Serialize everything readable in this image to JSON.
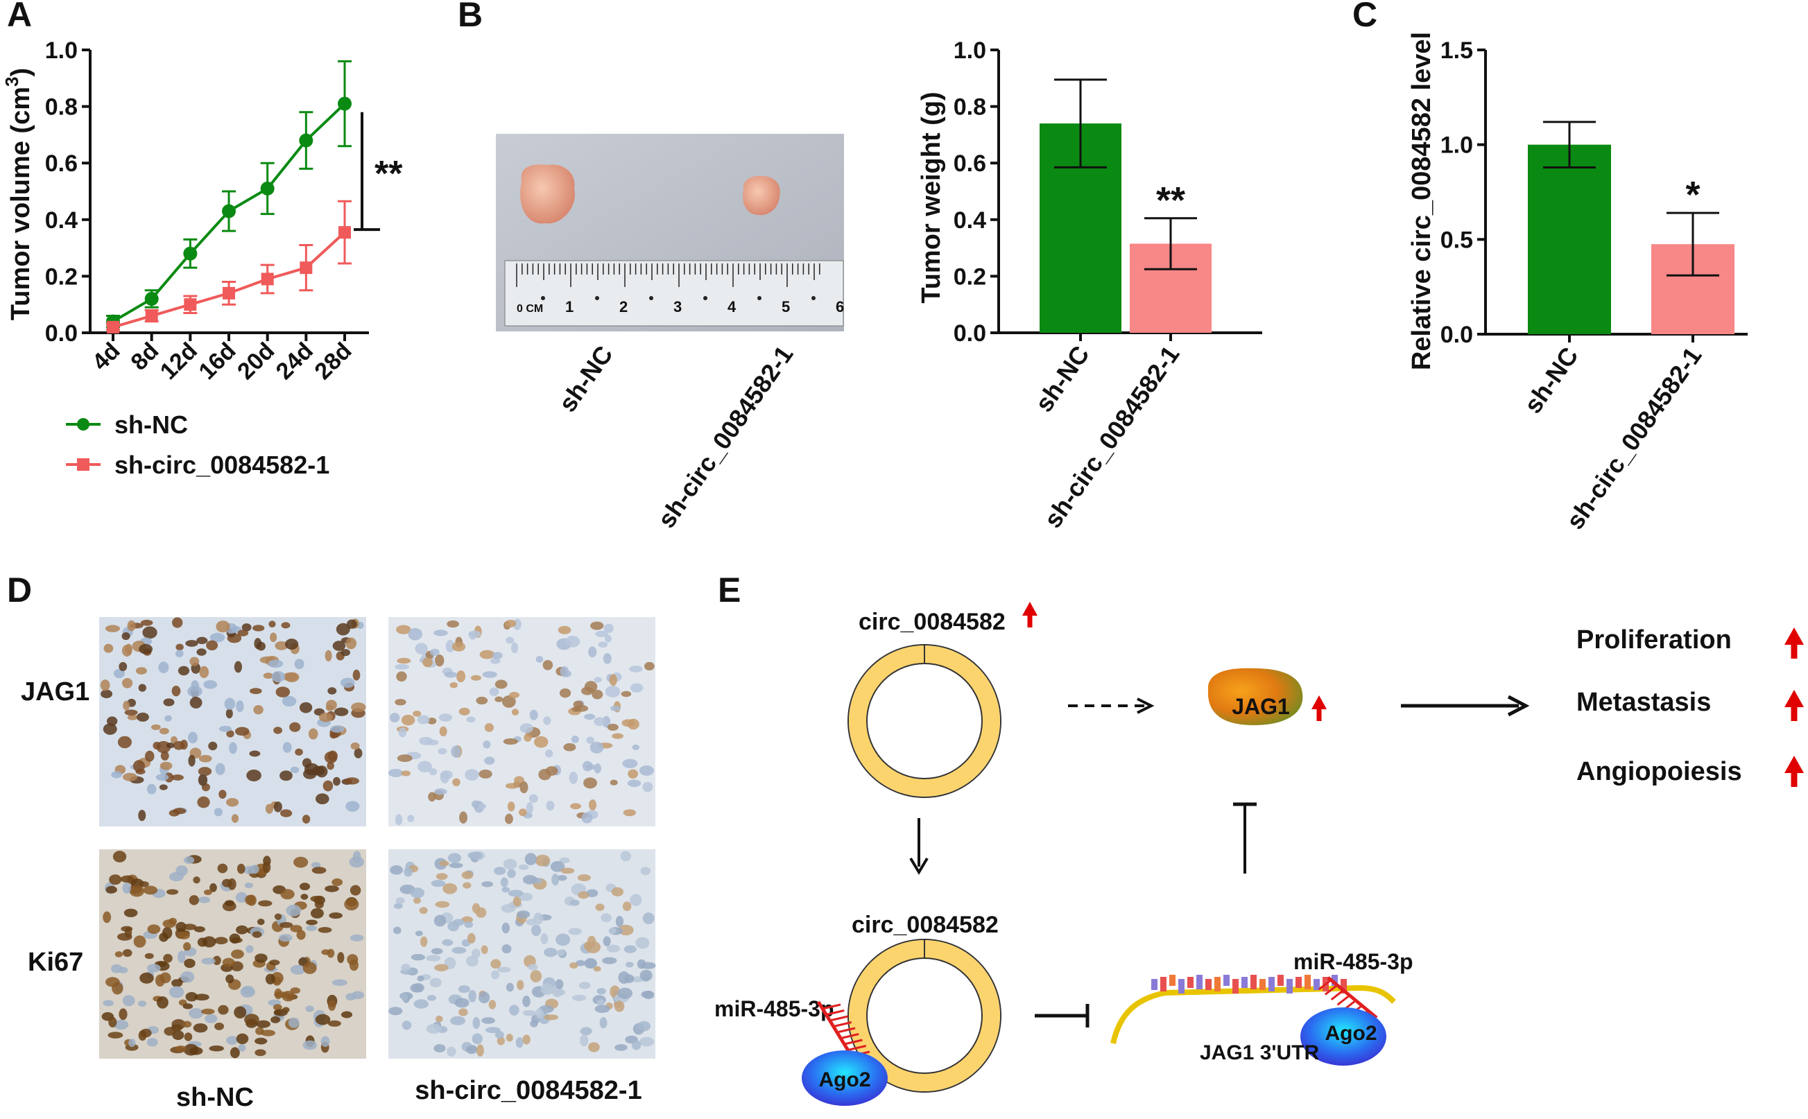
{
  "panels": {
    "A": "A",
    "B": "B",
    "C": "C",
    "D": "D",
    "E": "E"
  },
  "colors": {
    "sh_nc": "#0a8a12",
    "sh_circ": "#f05a5a",
    "bar_nc": "#0a8a12",
    "bar_circ": "#f88787",
    "ring": "#fcd46e",
    "arrow_red": "#e00000",
    "mir": "#e02020"
  },
  "chart_data": [
    {
      "id": "A",
      "type": "line",
      "ylabel": "Tumor volume (cm",
      "ylabel_sup": "3",
      "ylabel_end": ")",
      "ylim": [
        0,
        1.0
      ],
      "yticks": [
        "0.0",
        "0.2",
        "0.4",
        "0.6",
        "0.8",
        "1.0"
      ],
      "ytick_values": [
        0,
        0.2,
        0.4,
        0.6,
        0.8,
        1.0
      ],
      "categories": [
        "4d",
        "8d",
        "12d",
        "16d",
        "20d",
        "24d",
        "28d"
      ],
      "series": [
        {
          "name": "sh-NC",
          "values": [
            0.04,
            0.12,
            0.28,
            0.43,
            0.51,
            0.68,
            0.81
          ],
          "errors": [
            0.02,
            0.03,
            0.05,
            0.07,
            0.09,
            0.1,
            0.15
          ]
        },
        {
          "name": "sh-circ_0084582-1",
          "values": [
            0.02,
            0.06,
            0.1,
            0.14,
            0.19,
            0.23,
            0.355
          ],
          "errors": [
            0.01,
            0.02,
            0.03,
            0.04,
            0.05,
            0.08,
            0.11
          ]
        }
      ],
      "significance": "**"
    },
    {
      "id": "B",
      "type": "bar",
      "ylabel": "Tumor weight (g)",
      "ylim": [
        0,
        1.0
      ],
      "yticks": [
        "0.0",
        "0.2",
        "0.4",
        "0.6",
        "0.8",
        "1.0"
      ],
      "ytick_values": [
        0,
        0.2,
        0.4,
        0.6,
        0.8,
        1.0
      ],
      "categories": [
        "sh-NC",
        "sh-circ_0084582-1"
      ],
      "values": [
        0.74,
        0.315
      ],
      "errors": [
        0.155,
        0.09
      ],
      "significance": [
        "",
        "**"
      ]
    },
    {
      "id": "C",
      "type": "bar",
      "ylabel": "Relative circ_0084582 level",
      "ylim": [
        0,
        1.5
      ],
      "yticks": [
        "0.0",
        "0.5",
        "1.0",
        "1.5"
      ],
      "ytick_values": [
        0,
        0.5,
        1.0,
        1.5
      ],
      "categories": [
        "sh-NC",
        "sh-circ_0084582-1"
      ],
      "values": [
        1.0,
        0.475
      ],
      "errors": [
        0.12,
        0.165
      ],
      "significance": [
        "",
        "*"
      ]
    }
  ],
  "photo": {
    "labels": [
      "sh-NC",
      "sh-circ_0084582-1"
    ],
    "ruler_unit": "0 CM",
    "ruler_numbers": [
      "1",
      "2",
      "3",
      "4",
      "5",
      "6"
    ]
  },
  "ihc": {
    "rows": [
      "JAG1",
      "Ki67"
    ],
    "cols": [
      "sh-NC",
      "sh-circ_0084582-1"
    ]
  },
  "diagram": {
    "circ_top": "circ_0084582",
    "circ_bottom": "circ_0084582",
    "jag1": "JAG1",
    "mir_left": "miR-485-3p",
    "mir_right": "miR-485-3p",
    "ago2_left": "Ago2",
    "ago2_right": "Ago2",
    "utr": "JAG1 3'UTR",
    "outcomes": [
      "Proliferation",
      "Metastasis",
      "Angiopoiesis"
    ]
  }
}
